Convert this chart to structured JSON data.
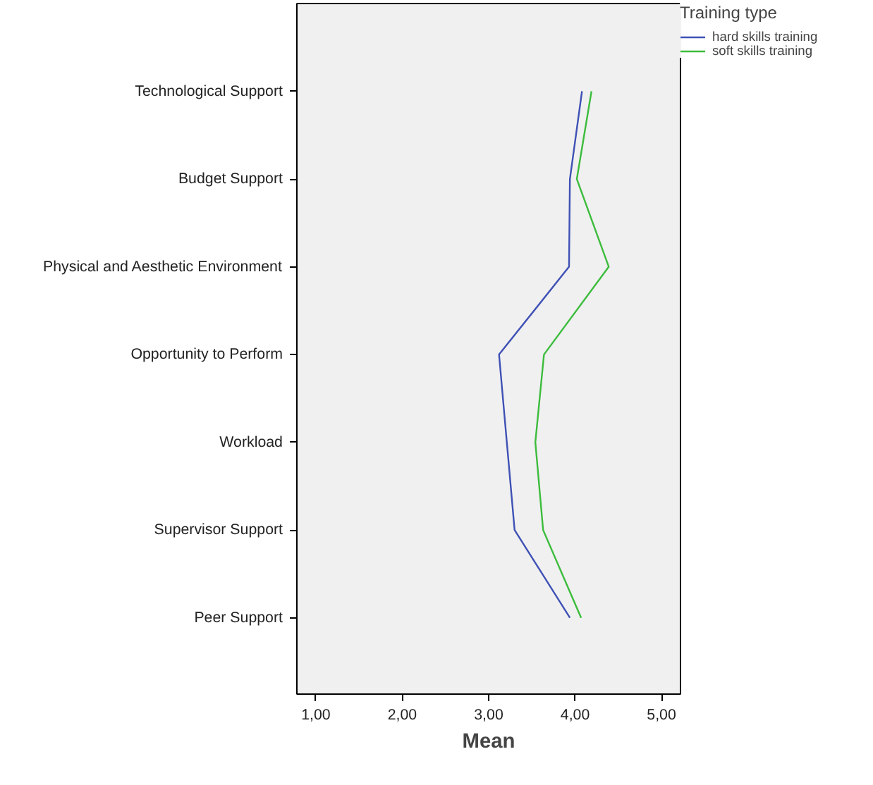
{
  "chart_data": {
    "type": "line",
    "orientation": "horizontal",
    "xlabel": "Mean",
    "legend_title": "Training type",
    "legend": "top right",
    "grid": false,
    "categories": [
      "Technological Support",
      "Budget Support",
      "Physical and Aesthetic Environment",
      "Opportunity to Perform",
      "Workload",
      "Supervisor Support",
      "Peer Support"
    ],
    "xlim": [
      0.78,
      5.22
    ],
    "xticks": [
      {
        "value": 1,
        "label": "1,00"
      },
      {
        "value": 2,
        "label": "2,00"
      },
      {
        "value": 3,
        "label": "3,00"
      },
      {
        "value": 4,
        "label": "4,00"
      },
      {
        "value": 5,
        "label": "5,00"
      }
    ],
    "series": [
      {
        "name": "hard skills training",
        "color": "#3f51b5",
        "values": [
          4.08,
          3.94,
          3.93,
          3.12,
          3.21,
          3.3,
          3.94
        ]
      },
      {
        "name": "soft skills training",
        "color": "#3cbc3c",
        "values": [
          4.19,
          4.02,
          4.39,
          3.64,
          3.54,
          3.63,
          4.07
        ]
      }
    ]
  }
}
